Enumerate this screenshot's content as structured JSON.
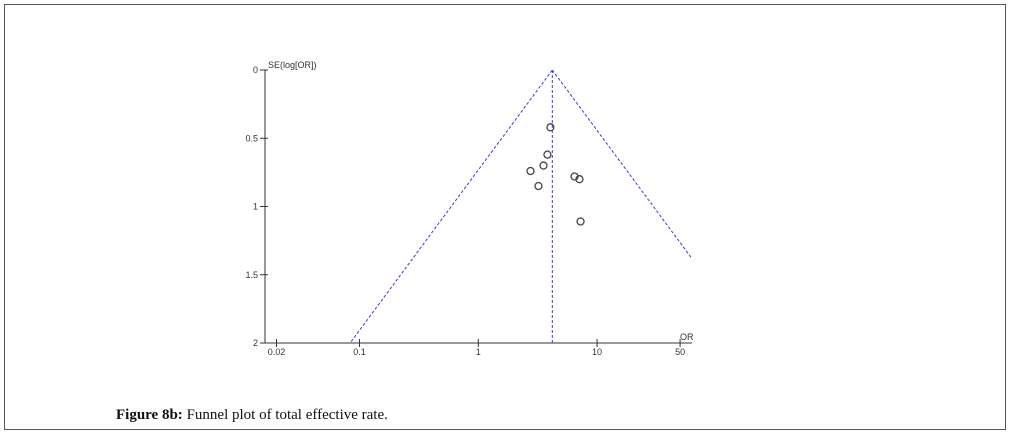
{
  "chart_data": {
    "type": "scatter",
    "x_label": "OR",
    "y_label": "SE(log[OR])",
    "x": [
      4.05,
      3.82,
      3.54,
      2.75,
      3.21,
      6.46,
      7.11,
      7.26
    ],
    "values": [
      0.42,
      0.62,
      0.7,
      0.74,
      0.85,
      0.78,
      0.8,
      1.11
    ],
    "funnel_center": 4.2,
    "color": "#444444",
    "funnel_color": "#3b3bd6",
    "x_log": true,
    "y_inverted": true,
    "xlim": [
      0.016,
      63
    ],
    "xticks": [
      0.02,
      0.1,
      1,
      10,
      50
    ],
    "ylim": [
      0,
      2
    ],
    "yticks": [
      0,
      0.5,
      1,
      1.5,
      2
    ]
  },
  "caption_label": "Figure 8b:",
  "caption": "Funnel plot of total effective rate."
}
